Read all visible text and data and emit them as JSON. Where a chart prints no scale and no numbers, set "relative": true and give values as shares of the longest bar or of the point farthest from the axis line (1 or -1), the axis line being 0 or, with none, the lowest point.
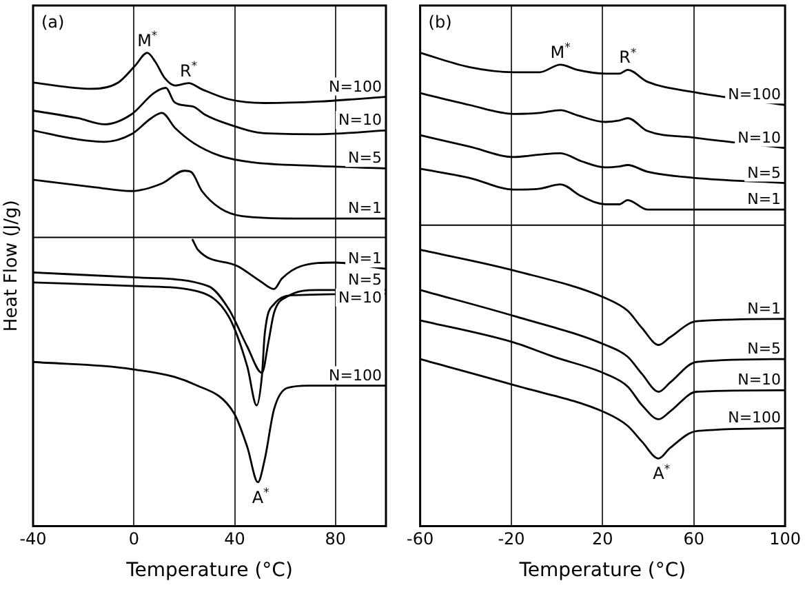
{
  "chart_data": [
    {
      "type": "line",
      "relative": true,
      "xlabel": "Temperature (°C)",
      "ylabel": "Heat Flow (J/g)",
      "xlim": [
        -40,
        100
      ],
      "xticks": [
        -40,
        0,
        40,
        80
      ],
      "grid": "x",
      "legend": false,
      "marker": "none",
      "line_style": "solid",
      "ref_lines": [
        {
          "axis": "y",
          "value": 0.61,
          "color": "#000000"
        }
      ],
      "annotations": [
        "(a)",
        {
          "text": "M$^{*}$",
          "x": 5.3,
          "y": 1
        },
        {
          "text": "R$^{*}$",
          "x": 21.7,
          "y": 0.936
        },
        {
          "text": "A$^{*}$",
          "x": 49.2,
          "y": 0.093
        }
      ],
      "series": [
        {
          "name": "N=100",
          "color": "#000000",
          "x": [
            -40,
            -16.9,
            -6.3,
            0.5,
            5.3,
            8.5,
            12.2,
            16.4,
            21.7,
            27,
            37.6,
            51.9,
            73,
            99.5
          ],
          "values": [
            0.937,
            0.924,
            0.937,
            0.973,
            1,
            0.981,
            0.947,
            0.931,
            0.936,
            0.923,
            0.902,
            0.894,
            0.897,
            0.907
          ]
        },
        {
          "name": "N=10",
          "color": "#000000",
          "x": [
            -40,
            -22.2,
            -11.6,
            -1,
            7.9,
            12.7,
            15.9,
            20.1,
            23.8,
            28,
            37.6,
            51.9,
            73,
            99.5
          ],
          "values": [
            0.878,
            0.862,
            0.849,
            0.87,
            0.915,
            0.926,
            0.897,
            0.889,
            0.886,
            0.87,
            0.849,
            0.83,
            0.828,
            0.836
          ]
        },
        {
          "name": "N=5",
          "color": "#000000",
          "x": [
            -40,
            -22.2,
            -11.6,
            -1,
            6.9,
            11.1,
            16.4,
            23.8,
            34.4,
            46.6,
            73,
            99.5
          ],
          "values": [
            0.836,
            0.817,
            0.812,
            0.828,
            0.862,
            0.873,
            0.841,
            0.809,
            0.782,
            0.769,
            0.761,
            0.756
          ]
        },
        {
          "name": "N=1",
          "color": "#000000",
          "x": [
            -40,
            -15.3,
            -1,
            11.1,
            20.1,
            22.8,
            27,
            34.4,
            42.9,
            64,
            99.5
          ],
          "values": [
            0.732,
            0.716,
            0.708,
            0.724,
            0.751,
            0.748,
            0.708,
            0.671,
            0.655,
            0.65,
            0.65
          ]
        },
        {
          "name": "N=1",
          "color": "#000000",
          "x": [
            23.3,
            25.4,
            41.3,
            50.3,
            55.6,
            58.7,
            66.1,
            79.9,
            99.5
          ],
          "values": [
            0.605,
            0.584,
            0.549,
            0.517,
            0.501,
            0.523,
            0.549,
            0.557,
            0.544
          ]
        },
        {
          "name": "N=5",
          "color": "#000000",
          "x": [
            -40,
            2.6,
            29.6,
            37.6,
            45,
            50.8,
            53.4,
            55.6,
            60.8,
            73,
            99.5
          ],
          "values": [
            0.536,
            0.525,
            0.507,
            0.459,
            0.379,
            0.324,
            0.39,
            0.451,
            0.485,
            0.499,
            0.499
          ]
        },
        {
          "name": "N=10",
          "color": "#000000",
          "x": [
            -40,
            2.6,
            25.4,
            37.6,
            45,
            48.7,
            50.8,
            51.9,
            55.6,
            64,
            99.5
          ],
          "values": [
            0.515,
            0.507,
            0.496,
            0.443,
            0.337,
            0.255,
            0.318,
            0.406,
            0.469,
            0.488,
            0.491
          ]
        },
        {
          "name": "N=100",
          "color": "#000000",
          "x": [
            -40,
            -1,
            23.8,
            39.7,
            45,
            49.2,
            51.9,
            55.6,
            60.8,
            69.3,
            99.5
          ],
          "values": [
            0.347,
            0.332,
            0.3,
            0.239,
            0.167,
            0.093,
            0.141,
            0.247,
            0.292,
            0.297,
            0.297
          ]
        }
      ]
    },
    {
      "type": "line",
      "relative": true,
      "xlabel": "Temperature (°C)",
      "xlim": [
        -60,
        100
      ],
      "xticks": [
        -60,
        -20,
        20,
        60,
        100
      ],
      "grid": "x",
      "legend": false,
      "marker": "none",
      "line_style": "solid",
      "ref_lines": [
        {
          "axis": "y",
          "value": 0.636,
          "color": "#000000"
        }
      ],
      "annotations": [
        "(b)",
        {
          "text": "M$^{*}$",
          "x": 1.5,
          "y": 0.975
        },
        {
          "text": "R$^{*}$",
          "x": 31,
          "y": 0.964
        },
        {
          "text": "A$^{*}$",
          "x": 44.6,
          "y": 0.143
        }
      ],
      "series": [
        {
          "name": "N=100",
          "color": "#000000",
          "x": [
            -60,
            -38.5,
            -18.8,
            -7.7,
            1.5,
            8.9,
            21.2,
            27.3,
            31,
            39.6,
            59.9,
            100
          ],
          "values": [
            1,
            0.97,
            0.959,
            0.959,
            0.975,
            0.964,
            0.956,
            0.956,
            0.964,
            0.939,
            0.917,
            0.89
          ]
        },
        {
          "name": "N=10",
          "color": "#000000",
          "x": [
            -60,
            -38.5,
            -18.8,
            -7.7,
            1.5,
            8.9,
            21.2,
            27.3,
            31,
            39.6,
            59.9,
            100
          ],
          "values": [
            0.915,
            0.89,
            0.871,
            0.873,
            0.879,
            0.868,
            0.854,
            0.857,
            0.862,
            0.835,
            0.821,
            0.799
          ]
        },
        {
          "name": "N=5",
          "color": "#000000",
          "x": [
            -60,
            -38.5,
            -18.8,
            -7.7,
            1.5,
            10.7,
            21.2,
            27.3,
            31,
            39.6,
            59.9,
            100
          ],
          "values": [
            0.826,
            0.802,
            0.78,
            0.785,
            0.788,
            0.771,
            0.758,
            0.76,
            0.763,
            0.749,
            0.736,
            0.725
          ]
        },
        {
          "name": "N=1",
          "color": "#000000",
          "x": [
            -60,
            -38.5,
            -18.8,
            -7.7,
            1.5,
            10.7,
            21.2,
            27.3,
            31,
            39.6,
            59.9,
            100
          ],
          "values": [
            0.755,
            0.736,
            0.711,
            0.713,
            0.722,
            0.697,
            0.68,
            0.68,
            0.689,
            0.669,
            0.669,
            0.669
          ]
        },
        {
          "name": "N=1",
          "color": "#000000",
          "x": [
            -60,
            -18.8,
            21.2,
            31,
            37.2,
            44.6,
            49.5,
            61.2,
            100
          ],
          "values": [
            0.584,
            0.54,
            0.482,
            0.455,
            0.419,
            0.383,
            0.399,
            0.433,
            0.438
          ]
        },
        {
          "name": "N=5",
          "color": "#000000",
          "x": [
            -60,
            -18.8,
            21.2,
            31,
            37.2,
            44.6,
            49.5,
            61.2,
            100
          ],
          "values": [
            0.499,
            0.444,
            0.383,
            0.358,
            0.322,
            0.284,
            0.303,
            0.347,
            0.353
          ]
        },
        {
          "name": "N=10",
          "color": "#000000",
          "x": [
            -60,
            -18.8,
            -1.5,
            21.2,
            31,
            37.2,
            44.6,
            49.5,
            61.2,
            100
          ],
          "values": [
            0.435,
            0.388,
            0.358,
            0.322,
            0.295,
            0.256,
            0.226,
            0.242,
            0.284,
            0.287
          ]
        },
        {
          "name": "N=100",
          "color": "#000000",
          "x": [
            -60,
            -18.8,
            21.2,
            31,
            37.2,
            44.6,
            49.5,
            61.2,
            100
          ],
          "values": [
            0.353,
            0.298,
            0.24,
            0.212,
            0.179,
            0.143,
            0.165,
            0.201,
            0.207
          ]
        }
      ]
    }
  ]
}
